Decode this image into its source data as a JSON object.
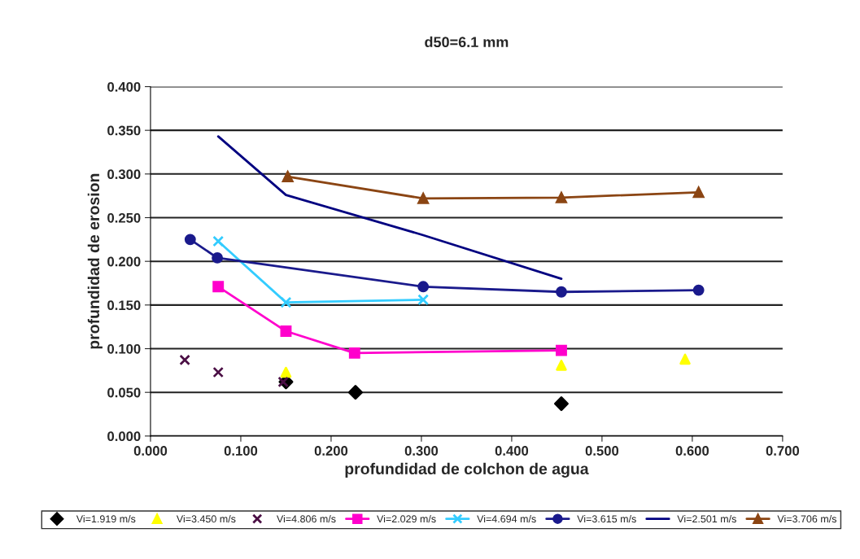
{
  "chart_data": {
    "type": "line",
    "title": "d50=6.1 mm",
    "xlabel": "profundidad de colchon de agua",
    "ylabel": "profundidad de erosion",
    "xlim": [
      0,
      0.7
    ],
    "xticks": [
      {
        "value": 0,
        "label": "0.000"
      },
      {
        "value": 0.1,
        "label": "0.100"
      },
      {
        "value": 0.2,
        "label": "0.200"
      },
      {
        "value": 0.3,
        "label": "0.300"
      },
      {
        "value": 0.4,
        "label": "0.400"
      },
      {
        "value": 0.5,
        "label": "0.500"
      },
      {
        "value": 0.6,
        "label": "0.600"
      },
      {
        "value": 0.7,
        "label": "0.700"
      }
    ],
    "ylim": [
      0,
      0.4
    ],
    "yticks": [
      {
        "value": 0,
        "label": "0.000"
      },
      {
        "value": 0.05,
        "label": "0.050"
      },
      {
        "value": 0.1,
        "label": "0.100"
      },
      {
        "value": 0.15,
        "label": "0.150"
      },
      {
        "value": 0.2,
        "label": "0.200"
      },
      {
        "value": 0.25,
        "label": "0.250"
      },
      {
        "value": 0.3,
        "label": "0.300"
      },
      {
        "value": 0.35,
        "label": "0.350"
      },
      {
        "value": 0.4,
        "label": "0.400"
      }
    ],
    "grid": "y",
    "legend": "bottom",
    "series": [
      {
        "name": "Vi=1.919 m/s",
        "type": "scatter",
        "marker": "diamond",
        "color": "#000000",
        "x": [
          0.15,
          0.227,
          0.455
        ],
        "values": [
          0.062,
          0.05,
          0.037
        ]
      },
      {
        "name": "Vi=3.450 m/s",
        "type": "scatter",
        "marker": "triangle",
        "color": "#ffff00",
        "x": [
          0.15,
          0.455,
          0.592
        ],
        "values": [
          0.073,
          0.081,
          0.088
        ]
      },
      {
        "name": "Vi=4.806 m/s",
        "type": "scatter",
        "marker": "cross",
        "color": "#4b0f45",
        "x": [
          0.038,
          0.075,
          0.147
        ],
        "values": [
          0.087,
          0.073,
          0.062
        ]
      },
      {
        "name": "Vi=2.029 m/s",
        "marker": "square",
        "color": "#ff00cc",
        "x": [
          0.075,
          0.15,
          0.226,
          0.455
        ],
        "values": [
          0.171,
          0.12,
          0.095,
          0.098
        ]
      },
      {
        "name": "Vi=4.694 m/s",
        "marker": "cross",
        "color": "#33ccff",
        "x": [
          0.075,
          0.15,
          0.302
        ],
        "values": [
          0.223,
          0.153,
          0.156
        ]
      },
      {
        "name": "Vi=3.615 m/s",
        "marker": "circle",
        "color": "#1a1a8c",
        "x": [
          0.044,
          0.074,
          0.302,
          0.455,
          0.607
        ],
        "values": [
          0.225,
          0.204,
          0.171,
          0.165,
          0.167
        ]
      },
      {
        "name": "Vi=2.501 m/s",
        "marker": "none",
        "color": "#000080",
        "x": [
          0.075,
          0.15,
          0.302,
          0.455
        ],
        "values": [
          0.343,
          0.276,
          0.23,
          0.18
        ]
      },
      {
        "name": "Vi=3.706 m/s",
        "marker": "triangle",
        "color": "#8b4513",
        "x": [
          0.152,
          0.302,
          0.455,
          0.607
        ],
        "values": [
          0.297,
          0.272,
          0.273,
          0.279
        ]
      }
    ]
  }
}
